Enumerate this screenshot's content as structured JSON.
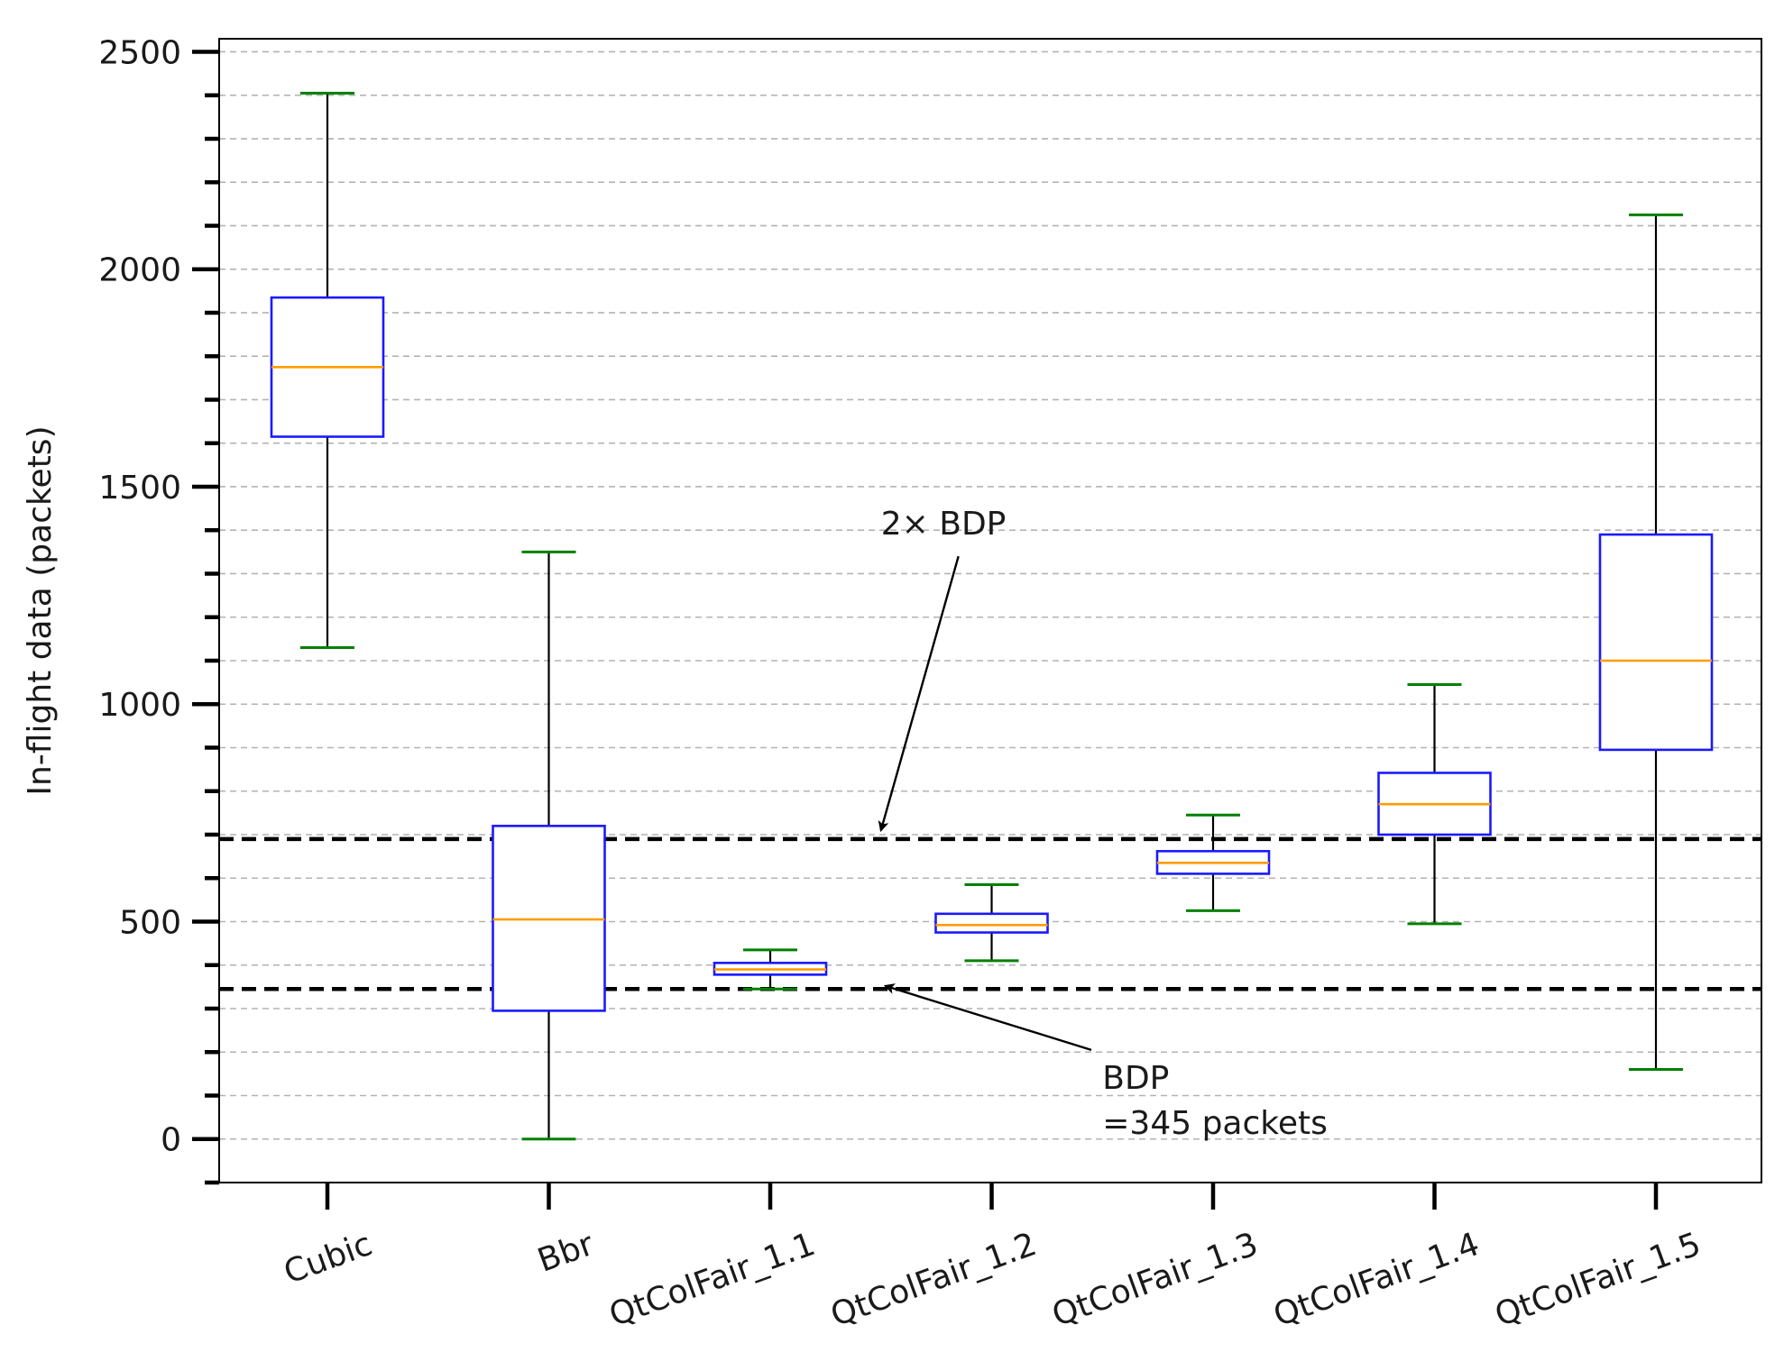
{
  "chart_data": {
    "type": "box",
    "title": "",
    "xlabel": "",
    "ylabel": "In-flight data (packets)",
    "ylim": [
      -100,
      2530
    ],
    "yticks_major": [
      0,
      500,
      1000,
      1500,
      2000,
      2500
    ],
    "ytick_labels": [
      "0",
      "500",
      "1000",
      "1500",
      "2000",
      "2500"
    ],
    "minor_tick_step": 100,
    "grid": "horizontal dashed at every 100 packets",
    "categories": [
      "Cubic",
      "Bbr",
      "QtColFair_1.1",
      "QtColFair_1.2",
      "QtColFair_1.3",
      "QtColFair_1.4",
      "QtColFair_1.5"
    ],
    "boxes": [
      {
        "whislo": 1130,
        "q1": 1615,
        "med": 1775,
        "q3": 1935,
        "whishi": 2405
      },
      {
        "whislo": 0,
        "q1": 295,
        "med": 505,
        "q3": 720,
        "whishi": 1350
      },
      {
        "whislo": 345,
        "q1": 378,
        "med": 390,
        "q3": 405,
        "whishi": 435
      },
      {
        "whislo": 410,
        "q1": 475,
        "med": 492,
        "q3": 518,
        "whishi": 585
      },
      {
        "whislo": 525,
        "q1": 610,
        "med": 635,
        "q3": 662,
        "whishi": 745
      },
      {
        "whislo": 495,
        "q1": 700,
        "med": 770,
        "q3": 842,
        "whishi": 1045
      },
      {
        "whislo": 160,
        "q1": 895,
        "med": 1100,
        "q3": 1390,
        "whishi": 2125
      }
    ],
    "reference_lines": [
      {
        "name": "BDP",
        "value": 345
      },
      {
        "name": "2x BDP",
        "value": 690
      }
    ],
    "annotations": [
      {
        "text_lines": [
          "2× BDP"
        ],
        "points_to": {
          "category_pos": 2.5,
          "value": 710
        },
        "text_anchor": {
          "category_pos": 2.5,
          "value": 1415
        }
      },
      {
        "text_lines": [
          "BDP",
          "=345 packets"
        ],
        "points_to": {
          "category_pos": 2.52,
          "value": 352
        },
        "text_anchor": {
          "category_pos": 3.5,
          "value": 145
        }
      }
    ],
    "colors": {
      "box": "#1a1aff",
      "median": "#ff9d00",
      "whisker": "#000000",
      "cap": "#008000",
      "reference": "#000000",
      "grid": "#b3b3b3"
    }
  }
}
